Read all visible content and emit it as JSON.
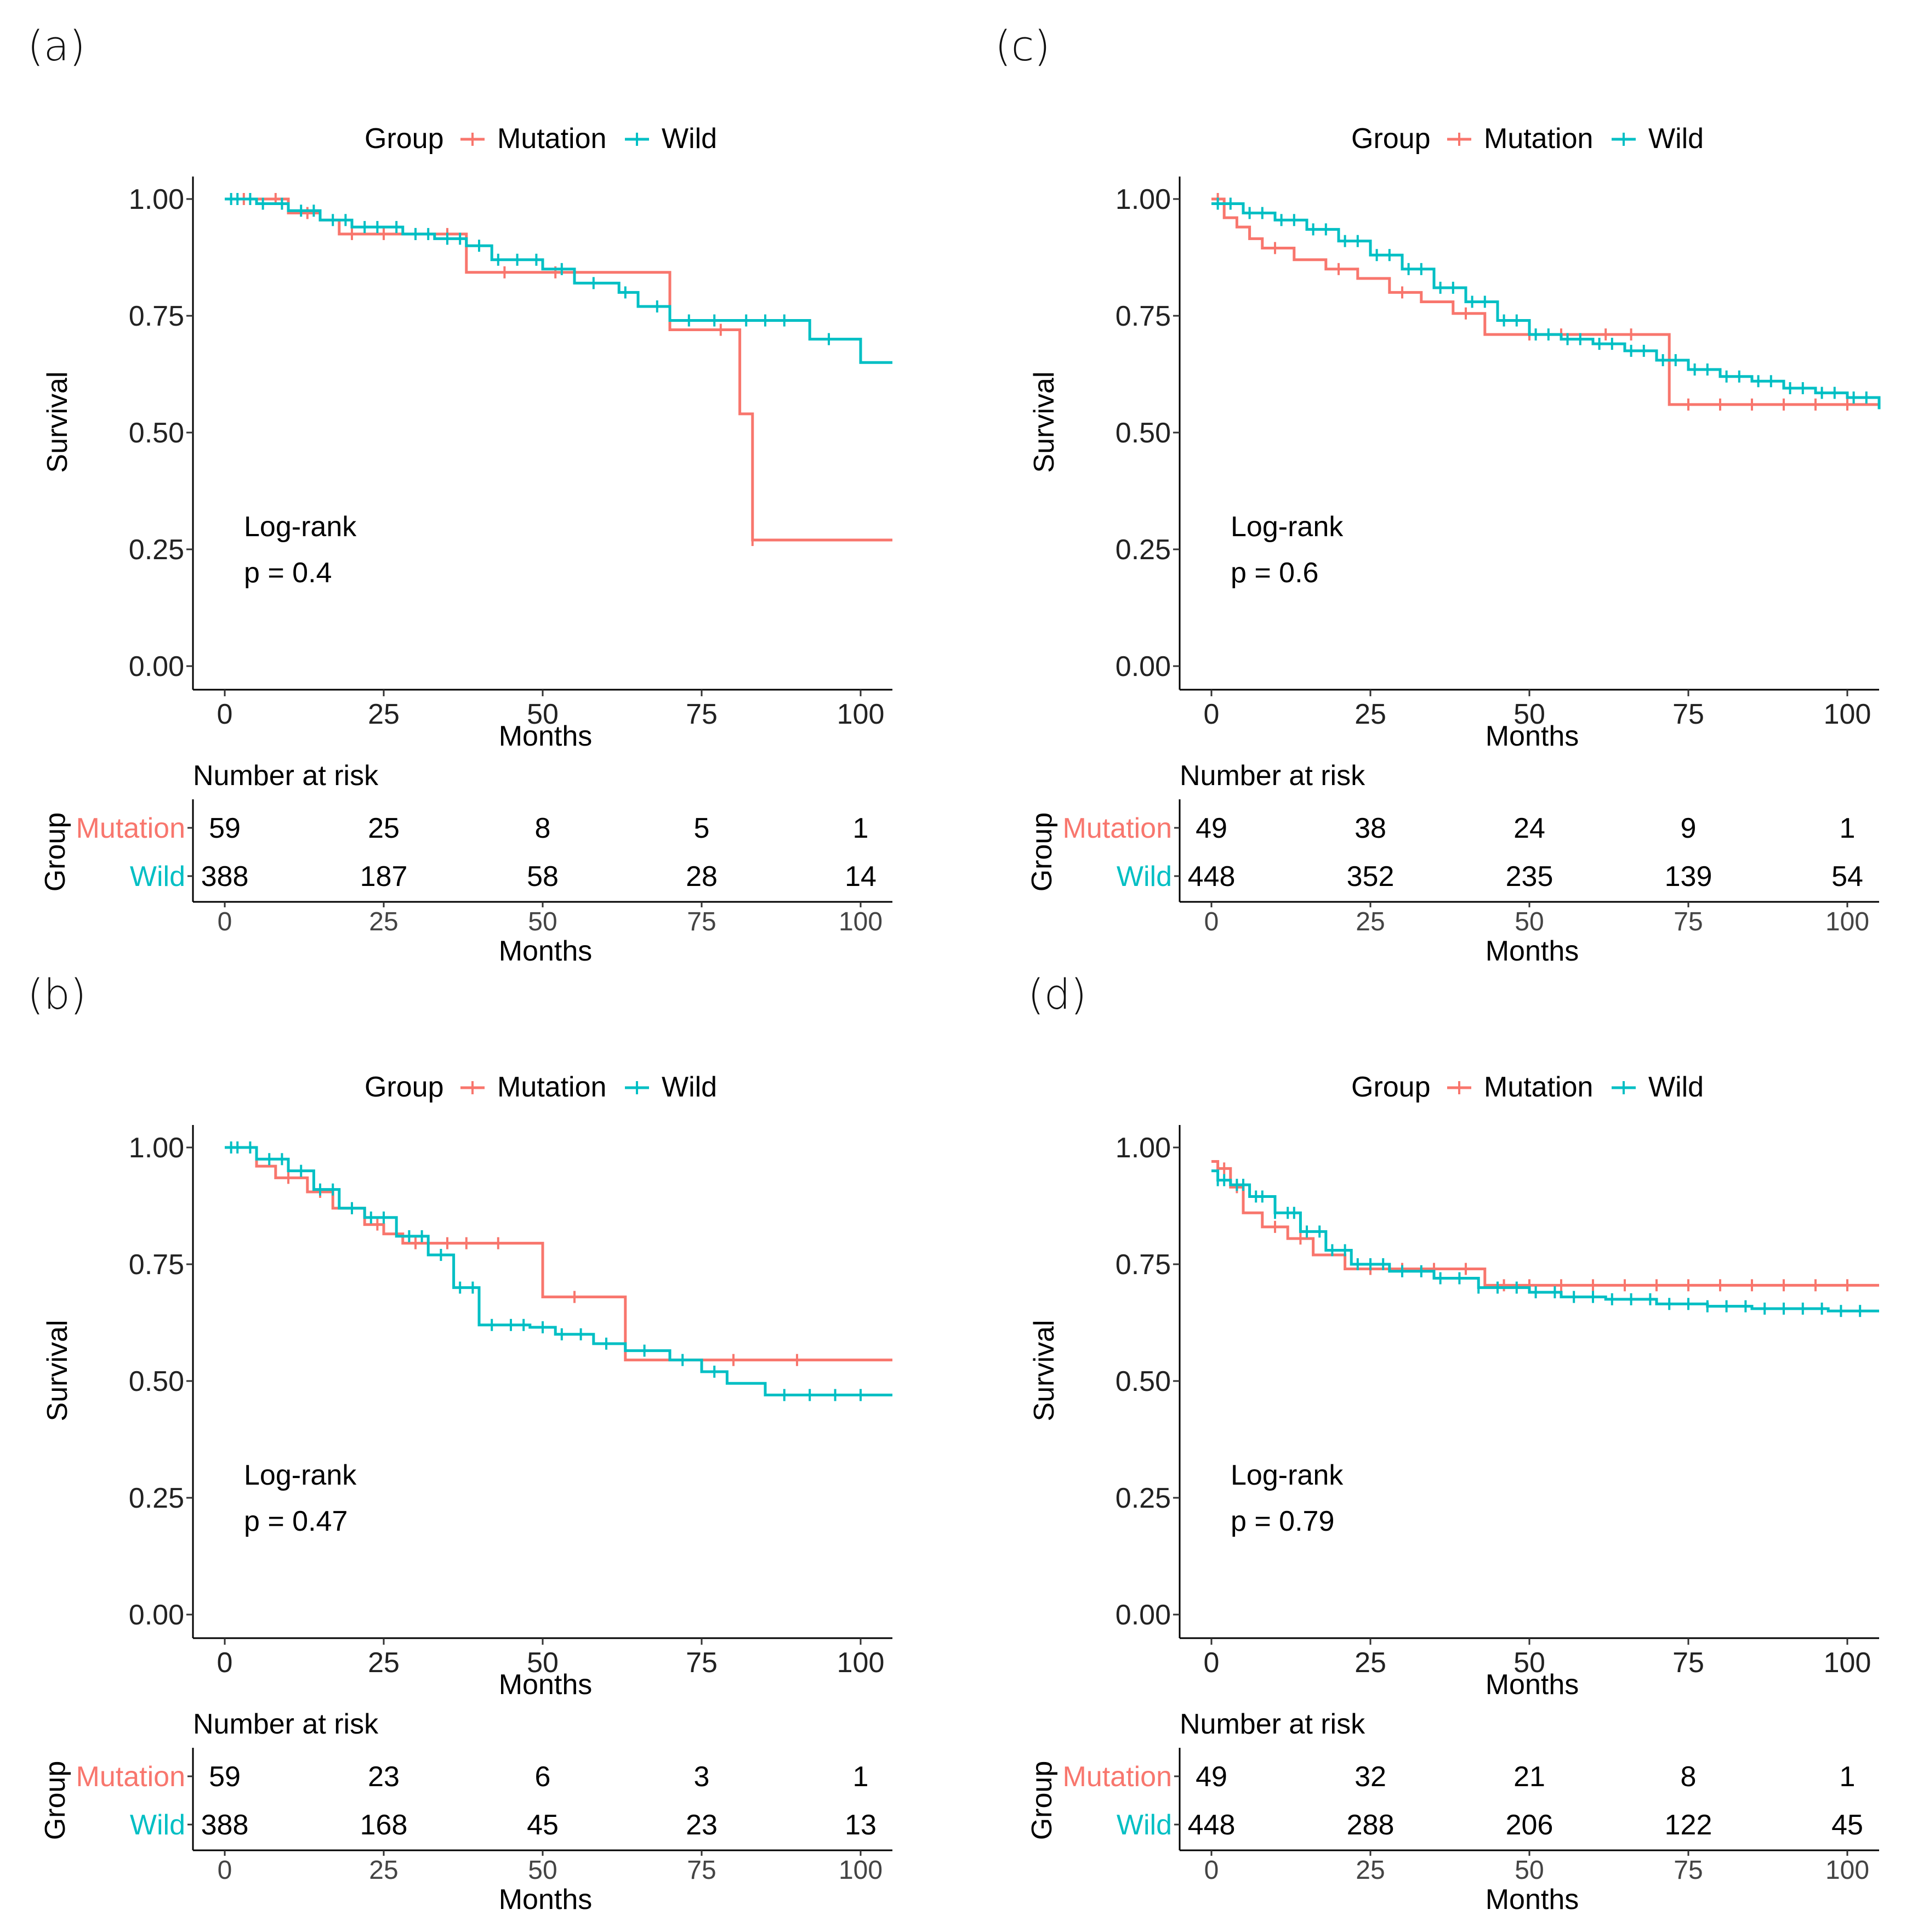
{
  "colors": {
    "mutation": "#F8766D",
    "wild": "#00BFC4"
  },
  "chart_data": [
    {
      "type": "line",
      "panel": "(a)",
      "legend_title": "Group",
      "series": [
        {
          "name": "Mutation",
          "x": [
            0,
            10,
            15,
            18,
            38,
            70,
            81,
            83,
            105
          ],
          "y": [
            1.0,
            0.97,
            0.955,
            0.925,
            0.843,
            0.72,
            0.54,
            0.27,
            0.27
          ],
          "censor_x": [
            3,
            8,
            13,
            20,
            25,
            30,
            35,
            44,
            52,
            78,
            83
          ]
        },
        {
          "name": "Wild",
          "x": [
            0,
            5,
            10,
            15,
            20,
            28,
            33,
            38,
            42,
            50,
            55,
            62,
            65,
            70,
            80,
            92,
            100,
            105
          ],
          "y": [
            1.0,
            0.99,
            0.975,
            0.955,
            0.94,
            0.925,
            0.915,
            0.9,
            0.87,
            0.85,
            0.82,
            0.8,
            0.77,
            0.74,
            0.74,
            0.7,
            0.65,
            0.65
          ],
          "censor_x": [
            1,
            2,
            4,
            6,
            9,
            12,
            14,
            17,
            19,
            22,
            24,
            27,
            30,
            32,
            35,
            37,
            40,
            43,
            46,
            49,
            53,
            58,
            63,
            68,
            73,
            77,
            82,
            85,
            88,
            95
          ]
        }
      ],
      "xlabel": "Months",
      "ylabel": "Survival",
      "xlim": [
        -5,
        105
      ],
      "ylim": [
        0,
        1
      ],
      "x_ticks": [
        0,
        25,
        50,
        75,
        100
      ],
      "y_ticks": [
        "0.00",
        "0.25",
        "0.50",
        "0.75",
        "1.00"
      ],
      "annotation": [
        "Log-rank",
        "p = 0.4"
      ],
      "risk_table": {
        "title": "Number at risk",
        "group_label": "Group",
        "times": [
          0,
          25,
          50,
          75,
          100
        ],
        "Mutation": [
          59,
          25,
          8,
          5,
          1
        ],
        "Wild": [
          388,
          187,
          58,
          28,
          14
        ],
        "xlabel": "Months"
      }
    },
    {
      "type": "line",
      "panel": "(b)",
      "legend_title": "Group",
      "series": [
        {
          "name": "Mutation",
          "x": [
            0,
            5,
            8,
            13,
            17,
            22,
            25,
            28,
            50,
            63,
            105
          ],
          "y": [
            1.0,
            0.96,
            0.935,
            0.905,
            0.87,
            0.835,
            0.815,
            0.795,
            0.68,
            0.545,
            0.545
          ],
          "censor_x": [
            10,
            15,
            20,
            24,
            30,
            35,
            38,
            43,
            55,
            80,
            90
          ]
        },
        {
          "name": "Wild",
          "x": [
            0,
            5,
            10,
            14,
            18,
            22,
            27,
            32,
            36,
            40,
            48,
            52,
            58,
            63,
            70,
            75,
            79,
            85,
            105
          ],
          "y": [
            1.0,
            0.975,
            0.95,
            0.91,
            0.87,
            0.85,
            0.81,
            0.77,
            0.7,
            0.62,
            0.615,
            0.6,
            0.58,
            0.565,
            0.545,
            0.52,
            0.495,
            0.47,
            0.47
          ],
          "censor_x": [
            1,
            2,
            4,
            7,
            9,
            12,
            15,
            17,
            20,
            23,
            25,
            29,
            31,
            34,
            37,
            39,
            42,
            45,
            47,
            50,
            53,
            56,
            60,
            66,
            72,
            77,
            88,
            92,
            96,
            100
          ]
        }
      ],
      "xlabel": "Months",
      "ylabel": "Survival",
      "xlim": [
        -5,
        105
      ],
      "ylim": [
        0,
        1
      ],
      "x_ticks": [
        0,
        25,
        50,
        75,
        100
      ],
      "y_ticks": [
        "0.00",
        "0.25",
        "0.50",
        "0.75",
        "1.00"
      ],
      "annotation": [
        "Log-rank",
        "p = 0.47"
      ],
      "risk_table": {
        "title": "Number at risk",
        "group_label": "Group",
        "times": [
          0,
          25,
          50,
          75,
          100
        ],
        "Mutation": [
          59,
          23,
          6,
          3,
          1
        ],
        "Wild": [
          388,
          168,
          45,
          23,
          13
        ],
        "xlabel": "Months"
      }
    },
    {
      "type": "line",
      "panel": "(c)",
      "legend_title": "Group",
      "series": [
        {
          "name": "Mutation",
          "x": [
            0,
            2,
            4,
            6,
            8,
            13,
            18,
            23,
            28,
            33,
            38,
            43,
            72,
            105
          ],
          "y": [
            1.0,
            0.96,
            0.94,
            0.915,
            0.895,
            0.87,
            0.85,
            0.83,
            0.8,
            0.78,
            0.755,
            0.71,
            0.56,
            0.56
          ],
          "censor_x": [
            1,
            10,
            20,
            30,
            40,
            50,
            55,
            62,
            66,
            75,
            80,
            85,
            90,
            95,
            100
          ]
        },
        {
          "name": "Wild",
          "x": [
            0,
            5,
            10,
            15,
            20,
            25,
            30,
            35,
            40,
            45,
            50,
            55,
            60,
            65,
            70,
            75,
            80,
            85,
            90,
            95,
            100,
            105
          ],
          "y": [
            0.99,
            0.97,
            0.955,
            0.935,
            0.91,
            0.88,
            0.85,
            0.81,
            0.78,
            0.74,
            0.71,
            0.7,
            0.69,
            0.675,
            0.655,
            0.635,
            0.62,
            0.61,
            0.595,
            0.585,
            0.575,
            0.55
          ],
          "censor_x": [
            1,
            3,
            6,
            8,
            11,
            13,
            16,
            18,
            21,
            23,
            26,
            28,
            31,
            33,
            36,
            38,
            41,
            43,
            46,
            48,
            51,
            53,
            56,
            58,
            61,
            63,
            66,
            68,
            71,
            73,
            76,
            78,
            81,
            83,
            86,
            88,
            91,
            93,
            96,
            98,
            101,
            103
          ]
        }
      ],
      "xlabel": "Months",
      "ylabel": "Survival",
      "xlim": [
        -5,
        105
      ],
      "ylim": [
        0,
        1
      ],
      "x_ticks": [
        0,
        25,
        50,
        75,
        100
      ],
      "y_ticks": [
        "0.00",
        "0.25",
        "0.50",
        "0.75",
        "1.00"
      ],
      "annotation": [
        "Log-rank",
        "p = 0.6"
      ],
      "risk_table": {
        "title": "Number at risk",
        "group_label": "Group",
        "times": [
          0,
          25,
          50,
          75,
          100
        ],
        "Mutation": [
          49,
          38,
          24,
          9,
          1
        ],
        "Wild": [
          448,
          352,
          235,
          139,
          54
        ],
        "xlabel": "Months"
      }
    },
    {
      "type": "line",
      "panel": "(d)",
      "legend_title": "Group",
      "series": [
        {
          "name": "Mutation",
          "x": [
            0,
            1,
            3,
            5,
            8,
            12,
            16,
            21,
            43,
            105
          ],
          "y": [
            0.97,
            0.955,
            0.915,
            0.86,
            0.83,
            0.805,
            0.77,
            0.74,
            0.705,
            0.705
          ],
          "censor_x": [
            2,
            4,
            10,
            14,
            25,
            30,
            35,
            40,
            46,
            50,
            55,
            60,
            65,
            70,
            75,
            80,
            85,
            90,
            95,
            100
          ]
        },
        {
          "name": "Wild",
          "x": [
            0,
            1,
            3,
            6,
            10,
            14,
            18,
            22,
            28,
            35,
            42,
            50,
            55,
            62,
            70,
            78,
            85,
            92,
            97,
            105
          ],
          "y": [
            0.95,
            0.93,
            0.92,
            0.895,
            0.86,
            0.82,
            0.78,
            0.75,
            0.735,
            0.72,
            0.7,
            0.69,
            0.68,
            0.675,
            0.665,
            0.66,
            0.655,
            0.655,
            0.65,
            0.65
          ],
          "censor_x": [
            1,
            2,
            4,
            5,
            7,
            8,
            10,
            12,
            13,
            15,
            17,
            19,
            21,
            23,
            25,
            27,
            30,
            33,
            36,
            39,
            42,
            45,
            48,
            51,
            54,
            57,
            60,
            63,
            66,
            69,
            72,
            75,
            78,
            81,
            84,
            87,
            90,
            93,
            96,
            99,
            102
          ]
        }
      ],
      "xlabel": "Months",
      "ylabel": "Survival",
      "xlim": [
        -5,
        105
      ],
      "ylim": [
        0,
        1
      ],
      "x_ticks": [
        0,
        25,
        50,
        75,
        100
      ],
      "y_ticks": [
        "0.00",
        "0.25",
        "0.50",
        "0.75",
        "1.00"
      ],
      "annotation": [
        "Log-rank",
        "p = 0.79"
      ],
      "risk_table": {
        "title": "Number at risk",
        "group_label": "Group",
        "times": [
          0,
          25,
          50,
          75,
          100
        ],
        "Mutation": [
          49,
          32,
          21,
          8,
          1
        ],
        "Wild": [
          448,
          288,
          206,
          122,
          45
        ],
        "xlabel": "Months"
      }
    }
  ]
}
